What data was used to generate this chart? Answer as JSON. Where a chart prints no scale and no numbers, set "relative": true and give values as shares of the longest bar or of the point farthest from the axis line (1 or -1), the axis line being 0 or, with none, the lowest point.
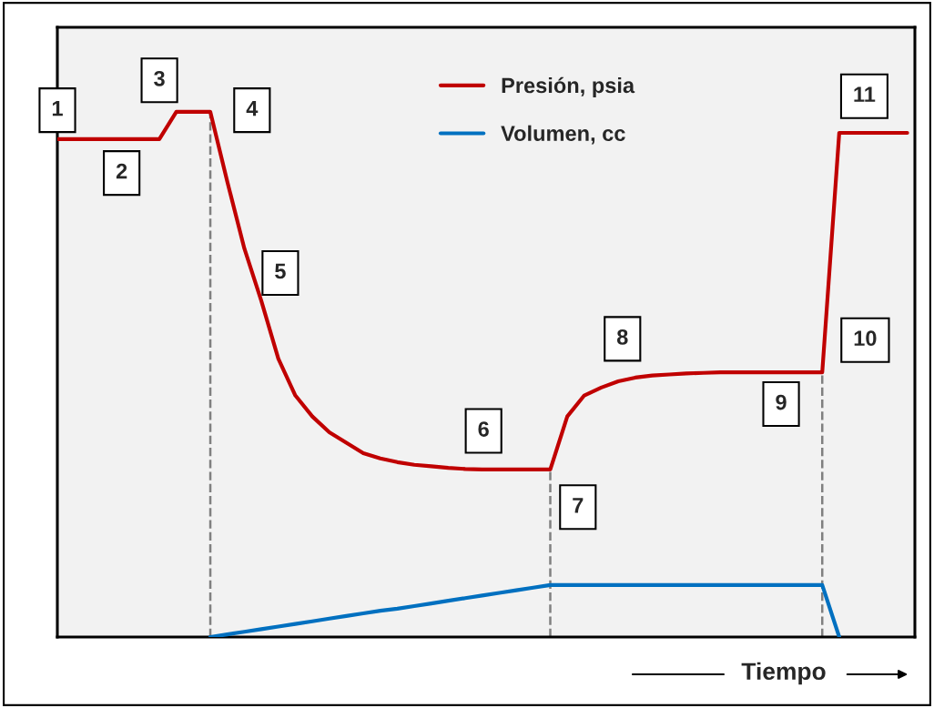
{
  "chart_data": {
    "type": "line",
    "relative": true,
    "xlabel": "Tiempo",
    "legend": "top",
    "marker": "none",
    "line_style": "solid",
    "categories": [
      null,
      null,
      null,
      null,
      null,
      null,
      null,
      null,
      null,
      null,
      null,
      null,
      null,
      null,
      null,
      null,
      null,
      null,
      null,
      null,
      null,
      null,
      null,
      null,
      null,
      null,
      null,
      null,
      null,
      null,
      null,
      null,
      null,
      null,
      null,
      null,
      null,
      null,
      null,
      null,
      null,
      null,
      null,
      null,
      null,
      null,
      null,
      null,
      null,
      null,
      null
    ],
    "series": [
      {
        "name": "Presión, psia",
        "color": "#c00000",
        "values": [
          0.948,
          0.948,
          0.948,
          0.948,
          0.948,
          0.948,
          0.948,
          1,
          1,
          1,
          0.867,
          0.74,
          0.64,
          0.53,
          0.46,
          0.42,
          0.39,
          0.37,
          0.35,
          0.34,
          0.333,
          0.328,
          0.325,
          0.322,
          0.32,
          0.319,
          0.319,
          0.319,
          0.319,
          0.319,
          0.42,
          0.46,
          0.475,
          0.487,
          0.494,
          0.498,
          0.5,
          0.502,
          0.503,
          0.504,
          0.504,
          0.504,
          0.504,
          0.504,
          0.504,
          0.504,
          0.96,
          0.96,
          0.96,
          0.96,
          0.96
        ]
      },
      {
        "name": "Volumen, cc",
        "color": "#0070c0",
        "values": [
          null,
          null,
          null,
          null,
          null,
          null,
          null,
          null,
          null,
          0,
          0.005,
          0.01,
          0.015,
          0.02,
          0.025,
          0.03,
          0.035,
          0.04,
          0.045,
          0.05,
          0.054,
          0.059,
          0.064,
          0.069,
          0.074,
          0.079,
          0.084,
          0.089,
          0.094,
          0.099,
          0.099,
          0.099,
          0.099,
          0.099,
          0.099,
          0.099,
          0.099,
          0.099,
          0.099,
          0.099,
          0.099,
          0.099,
          0.099,
          0.099,
          0.099,
          0.099,
          0,
          null,
          null,
          null,
          null
        ]
      }
    ],
    "annotations": [
      "1",
      "2",
      "3",
      "4",
      "5",
      "6",
      "7",
      "8",
      "9",
      "10",
      "11"
    ]
  }
}
